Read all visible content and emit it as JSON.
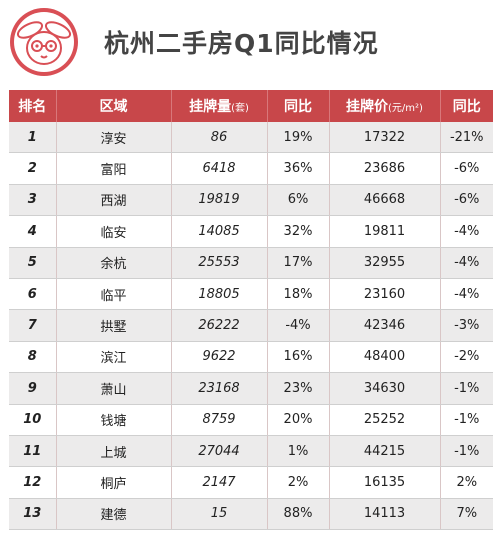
{
  "title": "杭州二手房Q1同比情况",
  "header": {
    "rank": "排名",
    "district": "区域",
    "listing": "挂牌量",
    "listing_unit": "(套)",
    "yoy1": "同比",
    "price": "挂牌价",
    "price_unit": "(元/m²)",
    "yoy2": "同比"
  },
  "rows": [
    {
      "rank": "1",
      "district": "淳安",
      "listing": "86",
      "yoy1": "19%",
      "price": "17322",
      "yoy2": "-21%"
    },
    {
      "rank": "2",
      "district": "富阳",
      "listing": "6418",
      "yoy1": "36%",
      "price": "23686",
      "yoy2": "-6%"
    },
    {
      "rank": "3",
      "district": "西湖",
      "listing": "19819",
      "yoy1": "6%",
      "price": "46668",
      "yoy2": "-6%"
    },
    {
      "rank": "4",
      "district": "临安",
      "listing": "14085",
      "yoy1": "32%",
      "price": "19811",
      "yoy2": "-4%"
    },
    {
      "rank": "5",
      "district": "余杭",
      "listing": "25553",
      "yoy1": "17%",
      "price": "32955",
      "yoy2": "-4%"
    },
    {
      "rank": "6",
      "district": "临平",
      "listing": "18805",
      "yoy1": "18%",
      "price": "23160",
      "yoy2": "-4%"
    },
    {
      "rank": "7",
      "district": "拱墅",
      "listing": "26222",
      "yoy1": "-4%",
      "price": "42346",
      "yoy2": "-3%"
    },
    {
      "rank": "8",
      "district": "滨江",
      "listing": "9622",
      "yoy1": "16%",
      "price": "48400",
      "yoy2": "-2%"
    },
    {
      "rank": "9",
      "district": "萧山",
      "listing": "23168",
      "yoy1": "23%",
      "price": "34630",
      "yoy2": "-1%"
    },
    {
      "rank": "10",
      "district": "钱塘",
      "listing": "8759",
      "yoy1": "20%",
      "price": "25252",
      "yoy2": "-1%"
    },
    {
      "rank": "11",
      "district": "上城",
      "listing": "27044",
      "yoy1": "1%",
      "price": "44215",
      "yoy2": "-1%"
    },
    {
      "rank": "12",
      "district": "桐庐",
      "listing": "2147",
      "yoy1": "2%",
      "price": "16135",
      "yoy2": "2%"
    },
    {
      "rank": "13",
      "district": "建德",
      "listing": "15",
      "yoy1": "88%",
      "price": "14113",
      "yoy2": "7%"
    }
  ],
  "colors": {
    "header_bg": "#c8474a",
    "stripe": "#ecebeb",
    "title_text": "#444444"
  },
  "icons": {
    "logo": "rabbit-logo-icon"
  }
}
